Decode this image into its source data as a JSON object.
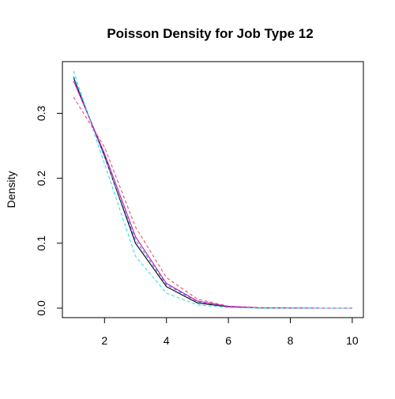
{
  "chart_data": {
    "type": "line",
    "title": "Poisson Density for Job Type 12",
    "xlabel": "",
    "ylabel": "Density",
    "xlim": [
      0.64,
      10.36
    ],
    "ylim": [
      -0.0146,
      0.3796
    ],
    "x_ticks": [
      2,
      4,
      6,
      8,
      10
    ],
    "x_tick_labels": [
      "2",
      "4",
      "6",
      "8",
      "10"
    ],
    "y_ticks": [
      0.0,
      0.1,
      0.2,
      0.3
    ],
    "y_tick_labels": [
      "0.0",
      "0.1",
      "0.2",
      "0.3"
    ],
    "grid": false,
    "legend": "none",
    "x": [
      1,
      2,
      3,
      4,
      5,
      6,
      7,
      8,
      9,
      10
    ],
    "series": [
      {
        "color": "#000000",
        "dash": "solid",
        "values": [
          0.355,
          0.234,
          0.1,
          0.033,
          0.008,
          0.002,
          0.0004,
          0.0001,
          0.0,
          0.0
        ]
      },
      {
        "color": "#DF536B",
        "dash": "dashed",
        "values": [
          0.325,
          0.248,
          0.125,
          0.047,
          0.014,
          0.003,
          0.0008,
          0.0002,
          0.0,
          0.0
        ]
      },
      {
        "color": "#2297E6",
        "dash": "dashed",
        "values": [
          0.357,
          0.233,
          0.105,
          0.036,
          0.01,
          0.0023,
          0.0005,
          0.0001,
          0.0,
          0.0
        ]
      },
      {
        "color": "#CD0BBC",
        "dash": "solid",
        "values": [
          0.35,
          0.238,
          0.11,
          0.038,
          0.011,
          0.0026,
          0.0006,
          0.0001,
          0.0,
          0.0
        ]
      },
      {
        "color": "#28E2E5",
        "dash": "dashed",
        "values": [
          0.365,
          0.222,
          0.08,
          0.023,
          0.005,
          0.001,
          0.0002,
          0.0,
          0.0,
          0.0
        ]
      }
    ]
  }
}
